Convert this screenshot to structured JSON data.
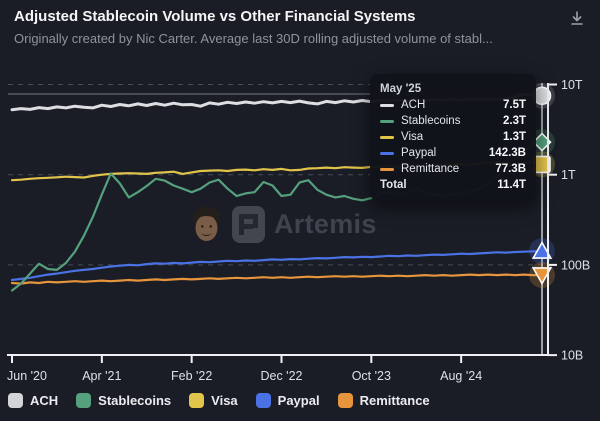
{
  "header": {
    "title": "Adjusted Stablecoin Volume vs Other Financial Systems",
    "subtitle": "Originally created by Nic Carter. Average last 30D rolling adjusted volume of stabl..."
  },
  "watermark": {
    "text": "Artemis"
  },
  "tooltip": {
    "date": "May '25",
    "rows": [
      {
        "series": "ACH",
        "value": "7.5T"
      },
      {
        "series": "Stablecoins",
        "value": "2.3T"
      },
      {
        "series": "Visa",
        "value": "1.3T"
      },
      {
        "series": "Paypal",
        "value": "142.3B"
      },
      {
        "series": "Remittance",
        "value": "77.3B"
      }
    ],
    "total_label": "Total",
    "total_value": "11.4T"
  },
  "colors": {
    "background": "#1a1d26",
    "axis": "#eef0f4",
    "gridline": "#474c58",
    "crosshair": "#e8ecf4",
    "tooltip_bg": "#111319"
  },
  "chart_data": {
    "type": "line",
    "title": "Adjusted Stablecoin Volume vs Other Financial Systems",
    "x_start": "Jun '20",
    "x_end": "May '25",
    "points": 60,
    "x_axis": {
      "ticks": [
        "Jun '20",
        "Apr '21",
        "Feb '22",
        "Dec '22",
        "Oct '23",
        "Aug '24"
      ],
      "tick_month_index": [
        0,
        10,
        20,
        30,
        40,
        50
      ]
    },
    "y_axis": {
      "scale": "log",
      "unit": "USD",
      "ticks": [
        "10T",
        "1T",
        "100B",
        "10B"
      ],
      "tick_values_B": [
        10000,
        1000,
        100,
        10
      ]
    },
    "hover": {
      "x_label": "May '25",
      "month_index": 59
    },
    "series": [
      {
        "name": "ACH",
        "color": "#dcdee2",
        "marker": "circle",
        "values_B": [
          5250,
          5400,
          5300,
          5550,
          5400,
          5650,
          5500,
          5750,
          5600,
          5500,
          5900,
          5700,
          6000,
          5800,
          6100,
          5850,
          6150,
          5900,
          6200,
          5950,
          6000,
          5750,
          6250,
          6050,
          6350,
          6150,
          6400,
          6200,
          6450,
          6250,
          6500,
          6300,
          6550,
          6250,
          6100,
          6500,
          6300,
          6600,
          6400,
          6650,
          6450,
          6700,
          6500,
          6750,
          6550,
          6800,
          6600,
          6850,
          6650,
          6900,
          6700,
          6950,
          6750,
          7000,
          6800,
          7050,
          7300,
          7800,
          7700,
          7500
        ]
      },
      {
        "name": "Stablecoins",
        "color": "#55a07d",
        "marker": "diamond",
        "values_B": [
          52,
          62,
          80,
          103,
          90,
          88,
          105,
          140,
          210,
          340,
          600,
          1030,
          800,
          560,
          640,
          750,
          900,
          860,
          760,
          700,
          640,
          700,
          820,
          880,
          700,
          580,
          620,
          640,
          830,
          760,
          580,
          600,
          820,
          870,
          680,
          600,
          560,
          580,
          540,
          520,
          550,
          600,
          650,
          600,
          620,
          700,
          650,
          600,
          580,
          600,
          620,
          650,
          700,
          800,
          950,
          1250,
          1500,
          1800,
          2100,
          2300
        ]
      },
      {
        "name": "Visa",
        "color": "#e3c44b",
        "marker": "square",
        "values_B": [
          870,
          880,
          900,
          915,
          925,
          935,
          950,
          940,
          930,
          970,
          1000,
          1020,
          1030,
          1040,
          1030,
          1020,
          1050,
          1060,
          1080,
          1020,
          1060,
          1100,
          1110,
          1120,
          1100,
          1130,
          1140,
          1120,
          1150,
          1130,
          1160,
          1120,
          1130,
          1170,
          1180,
          1200,
          1180,
          1210,
          1200,
          1190,
          1220,
          1230,
          1260,
          1200,
          1210,
          1260,
          1270,
          1290,
          1270,
          1300,
          1310,
          1290,
          1330,
          1350,
          1380,
          1300,
          1280,
          1350,
          1380,
          1300
        ]
      },
      {
        "name": "Paypal",
        "color": "#4a72e4",
        "marker": "triangle-up",
        "values_B": [
          68,
          70,
          72,
          75,
          78,
          80,
          83,
          86,
          88,
          90,
          93,
          96,
          98,
          100,
          99,
          102,
          104,
          103,
          105,
          104,
          106,
          108,
          107,
          109,
          111,
          110,
          112,
          111,
          113,
          115,
          114,
          116,
          115,
          117,
          119,
          118,
          120,
          122,
          121,
          123,
          122,
          124,
          126,
          125,
          127,
          126,
          128,
          130,
          129,
          131,
          133,
          132,
          134,
          136,
          138,
          137,
          139,
          140,
          141,
          142.3
        ]
      },
      {
        "name": "Remittance",
        "color": "#e6953c",
        "marker": "triangle-down",
        "values_B": [
          63,
          62,
          64,
          63,
          65,
          64,
          65,
          66,
          65,
          66,
          67,
          66,
          67,
          68,
          67,
          68,
          69,
          68,
          69,
          70,
          69,
          70,
          71,
          70,
          71,
          72,
          71,
          72,
          73,
          72,
          73,
          72,
          73,
          74,
          73,
          74,
          75,
          74,
          75,
          74,
          75,
          76,
          75,
          76,
          75,
          76,
          77,
          76,
          77,
          76,
          77,
          78,
          77,
          78,
          77,
          78,
          77,
          78,
          77,
          77.3
        ]
      }
    ],
    "legend_position": "bottom"
  }
}
